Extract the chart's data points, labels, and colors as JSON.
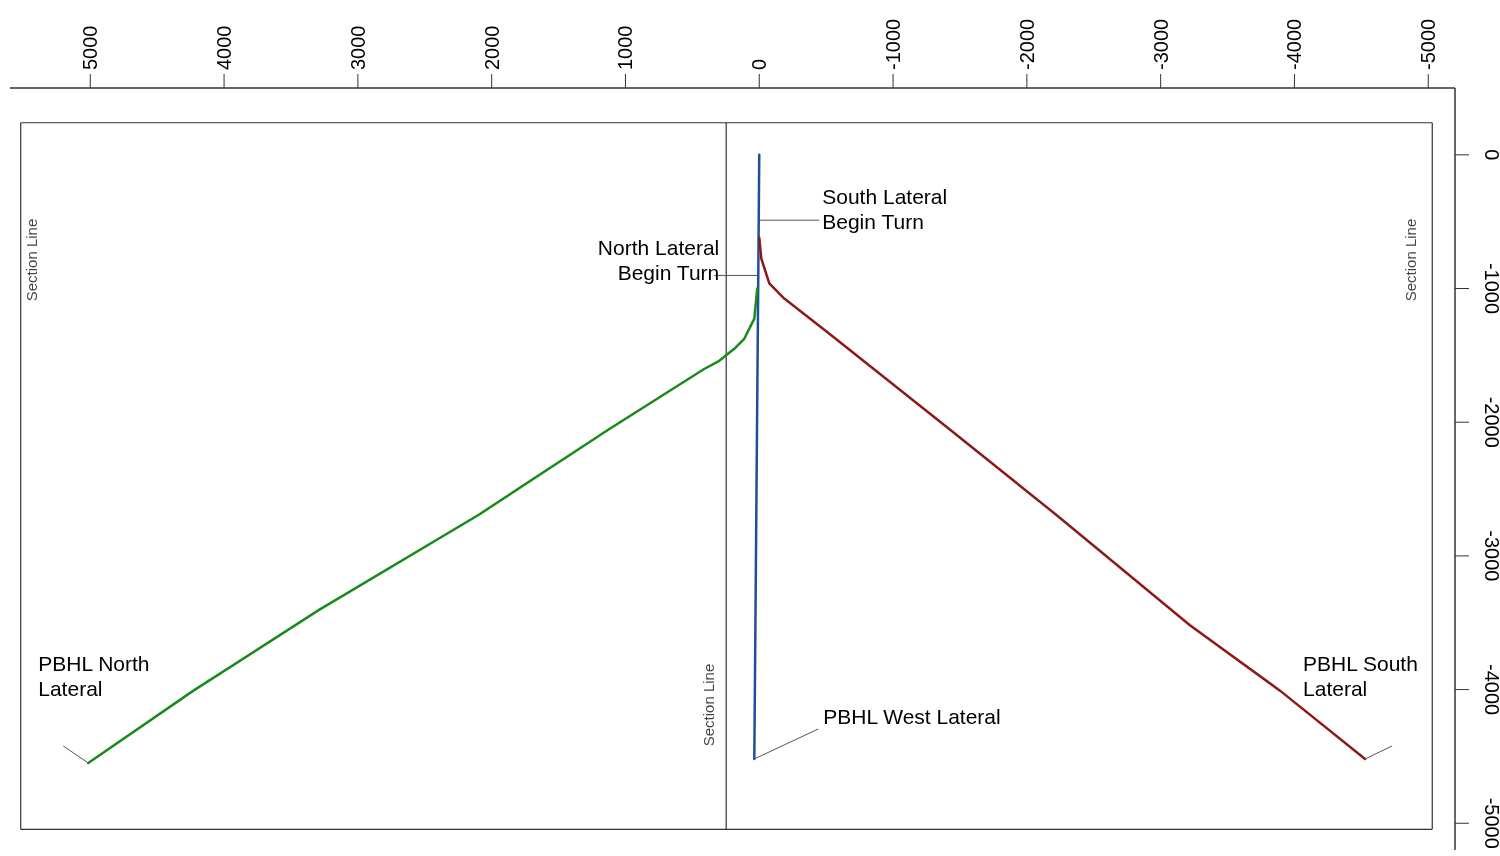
{
  "chart_data": {
    "type": "line",
    "xlim": [
      5600,
      -5200
    ],
    "ylim": [
      -5200,
      500
    ],
    "xticks": [
      5000,
      4000,
      3000,
      2000,
      1000,
      0,
      -1000,
      -2000,
      -3000,
      -4000,
      -5000
    ],
    "yticks": [
      0,
      -1000,
      -2000,
      -3000,
      -4000,
      -5000
    ],
    "series": [
      {
        "color": "#1f4e9a",
        "x": [
          0,
          37
        ],
        "values": [
          0,
          -4520
        ]
      },
      {
        "color": "#8b1a1a",
        "x": [
          0,
          -15,
          -75,
          -187,
          -524,
          -1422,
          -2246,
          -3219,
          -3892,
          -4528
        ],
        "values": [
          -620,
          -774,
          -962,
          -1075,
          -1338,
          -2053,
          -2714,
          -3519,
          -4008,
          -4519
        ]
      },
      {
        "color": "#1a8a1a",
        "x": [
          15,
          37,
          112,
          187,
          299,
          412,
          1123,
          2096,
          3293,
          4229,
          5015
        ],
        "values": [
          -1000,
          -1225,
          -1376,
          -1451,
          -1541,
          -1602,
          -2053,
          -2692,
          -3406,
          -4008,
          -4549
        ]
      }
    ],
    "ref_lines": [
      {
        "axis": "x",
        "value": 5520,
        "label": "Section Line",
        "color": "#333333"
      },
      {
        "axis": "x",
        "value": 247,
        "label": "Section Line",
        "color": "#333333"
      },
      {
        "axis": "x",
        "value": -5030,
        "label": "Section Line",
        "color": "#333333"
      },
      {
        "axis": "y",
        "value": 240,
        "color": "#333333"
      },
      {
        "axis": "y",
        "value": -5045,
        "color": "#333333"
      }
    ],
    "annotations": [
      {
        "text": "South Lateral\nBegin Turn",
        "x": 0,
        "y": -489
      },
      {
        "text": "North Lateral\nBegin Turn",
        "x": 15,
        "y": -902
      },
      {
        "text": "PBHL North\nLateral",
        "x": 5015,
        "y": -4549
      },
      {
        "text": "PBHL South\nLateral",
        "x": -4528,
        "y": -4519
      },
      {
        "text": "PBHL West Lateral",
        "x": 37,
        "y": -4519
      }
    ],
    "grid": false,
    "marker": "none",
    "line_style": "solid"
  }
}
